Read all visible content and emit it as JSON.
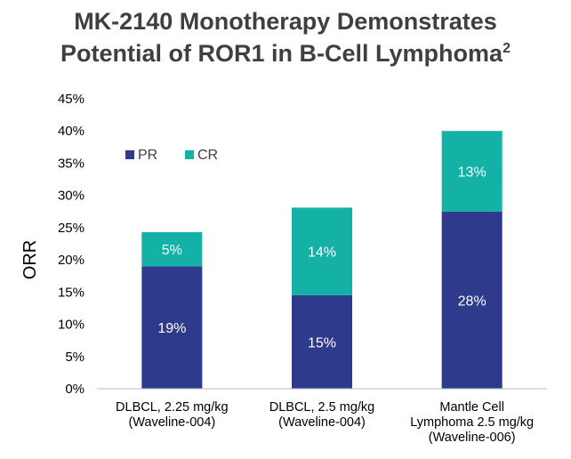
{
  "title": {
    "main": "MK-2140 Monotherapy Demonstrates",
    "line2": "Potential of ROR1 in B-Cell Lymphoma",
    "superscript": "2"
  },
  "chart_data": {
    "type": "bar",
    "stacked": true,
    "title": "MK-2140 Monotherapy Demonstrates Potential of ROR1 in B-Cell Lymphoma2",
    "xlabel": "",
    "ylabel": "ORR",
    "ylim": [
      0,
      45
    ],
    "yticks": [
      "0%",
      "5%",
      "10%",
      "15%",
      "20%",
      "25%",
      "30%",
      "35%",
      "40%",
      "45%"
    ],
    "categories": [
      [
        "DLBCL, 2.25 mg/kg",
        "(Waveline-004)"
      ],
      [
        "DLBCL, 2.5 mg/kg",
        "(Waveline-004)"
      ],
      [
        "Mantle Cell",
        "Lymphoma 2.5 mg/kg",
        "(Waveline-006)"
      ]
    ],
    "series": [
      {
        "name": "PR",
        "color": "#2e3a8c",
        "values": [
          19,
          14.5,
          27.5
        ],
        "labels": [
          "19%",
          "15%",
          "28%"
        ]
      },
      {
        "name": "CR",
        "color": "#14b1a6",
        "values": [
          5.3,
          13.6,
          12.5
        ],
        "labels": [
          "5%",
          "14%",
          "13%"
        ]
      }
    ],
    "legend": "top-left inside plot",
    "grid": false
  }
}
